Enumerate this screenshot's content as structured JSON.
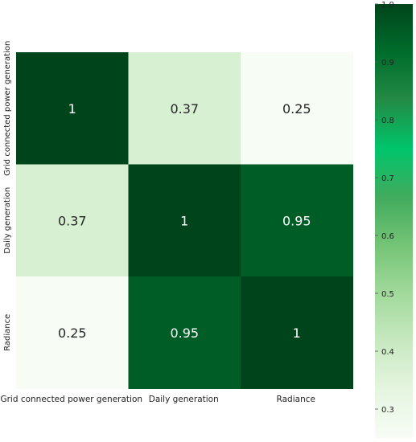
{
  "chart_data": {
    "type": "heatmap",
    "title": "",
    "row_labels": [
      "Grid connected power generation",
      "Daily generation",
      "Radiance"
    ],
    "col_labels": [
      "Grid connected power generation",
      "Daily generation",
      "Radiance"
    ],
    "values": [
      [
        1,
        0.37,
        0.25
      ],
      [
        0.37,
        1,
        0.95
      ],
      [
        0.25,
        0.95,
        1
      ]
    ],
    "annotations": [
      [
        "1",
        "0.37",
        "0.25"
      ],
      [
        "0.37",
        "1",
        "0.95"
      ],
      [
        "0.25",
        "0.95",
        "1"
      ]
    ],
    "colorbar": {
      "range": [
        0.25,
        1.0
      ],
      "ticks": [
        0.3,
        0.4,
        0.5,
        0.6,
        0.7,
        0.8,
        0.9,
        1.0
      ],
      "tick_labels": [
        "0.3",
        "0.4",
        "0.5",
        "0.6",
        "0.7",
        "0.8",
        "0.9",
        "1.0"
      ],
      "colormap": "Greens",
      "colors": [
        "#f7fcf5",
        "#e5f5e0",
        "#c7e9c0",
        "#a1d99b",
        "#74c476",
        "#41ab5d",
        "#00c56b",
        "#238b45",
        "#006d2c",
        "#00441b"
      ]
    },
    "grid": false,
    "legend": "right colorbar"
  }
}
